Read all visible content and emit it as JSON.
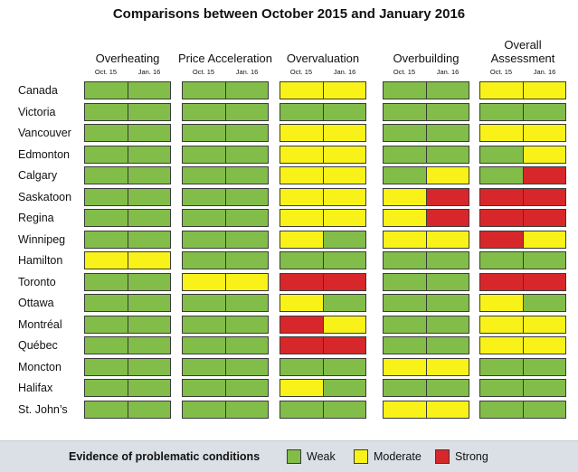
{
  "chart_data": {
    "type": "table",
    "title": "Comparisons between October 2015 and January 2016",
    "groups": [
      "Overheating",
      "Price Acceleration",
      "Overvaluation",
      "Overbuilding",
      "Overall Assessment"
    ],
    "subcolumns": [
      "Oct. 15",
      "Jan. 16"
    ],
    "rows": [
      {
        "city": "Canada",
        "values": [
          "W",
          "W",
          "W",
          "W",
          "M",
          "M",
          "W",
          "W",
          "M",
          "M"
        ]
      },
      {
        "city": "Victoria",
        "values": [
          "W",
          "W",
          "W",
          "W",
          "W",
          "W",
          "W",
          "W",
          "W",
          "W"
        ]
      },
      {
        "city": "Vancouver",
        "values": [
          "W",
          "W",
          "W",
          "W",
          "M",
          "M",
          "W",
          "W",
          "M",
          "M"
        ]
      },
      {
        "city": "Edmonton",
        "values": [
          "W",
          "W",
          "W",
          "W",
          "M",
          "M",
          "W",
          "W",
          "W",
          "M"
        ]
      },
      {
        "city": "Calgary",
        "values": [
          "W",
          "W",
          "W",
          "W",
          "M",
          "M",
          "W",
          "M",
          "W",
          "S"
        ]
      },
      {
        "city": "Saskatoon",
        "values": [
          "W",
          "W",
          "W",
          "W",
          "M",
          "M",
          "M",
          "S",
          "S",
          "S"
        ]
      },
      {
        "city": "Regina",
        "values": [
          "W",
          "W",
          "W",
          "W",
          "M",
          "M",
          "M",
          "S",
          "S",
          "S"
        ]
      },
      {
        "city": "Winnipeg",
        "values": [
          "W",
          "W",
          "W",
          "W",
          "M",
          "W",
          "M",
          "M",
          "S",
          "M"
        ]
      },
      {
        "city": "Hamilton",
        "values": [
          "M",
          "M",
          "W",
          "W",
          "W",
          "W",
          "W",
          "W",
          "W",
          "W"
        ]
      },
      {
        "city": "Toronto",
        "values": [
          "W",
          "W",
          "M",
          "M",
          "S",
          "S",
          "W",
          "W",
          "S",
          "S"
        ]
      },
      {
        "city": "Ottawa",
        "values": [
          "W",
          "W",
          "W",
          "W",
          "M",
          "W",
          "W",
          "W",
          "M",
          "W"
        ]
      },
      {
        "city": "Montréal",
        "values": [
          "W",
          "W",
          "W",
          "W",
          "S",
          "M",
          "W",
          "W",
          "M",
          "M"
        ]
      },
      {
        "city": "Québec",
        "values": [
          "W",
          "W",
          "W",
          "W",
          "S",
          "S",
          "W",
          "W",
          "M",
          "M"
        ]
      },
      {
        "city": "Moncton",
        "values": [
          "W",
          "W",
          "W",
          "W",
          "W",
          "W",
          "M",
          "M",
          "W",
          "W"
        ]
      },
      {
        "city": "Halifax",
        "values": [
          "W",
          "W",
          "W",
          "W",
          "M",
          "W",
          "W",
          "W",
          "W",
          "W"
        ]
      },
      {
        "city": "St. John’s",
        "values": [
          "W",
          "W",
          "W",
          "W",
          "W",
          "W",
          "M",
          "M",
          "W",
          "W"
        ]
      }
    ],
    "levels": {
      "W": "Weak",
      "M": "Moderate",
      "S": "Strong"
    }
  },
  "colors": {
    "W": "#82bd4a",
    "M": "#f8f219",
    "S": "#d8272a"
  },
  "legend": {
    "title": "Evidence of problematic conditions",
    "weak": "Weak",
    "moderate": "Moderate",
    "strong": "Strong"
  }
}
